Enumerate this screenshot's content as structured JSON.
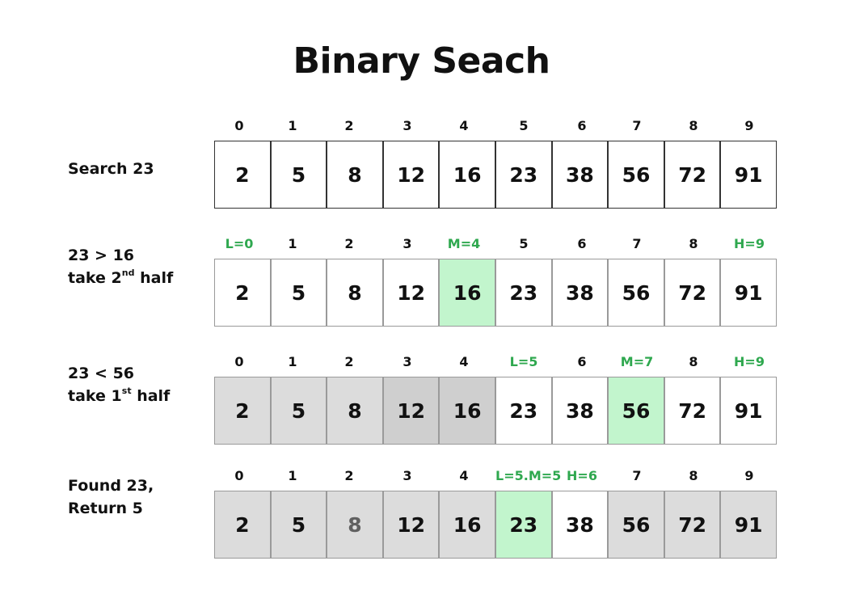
{
  "title": "Binary Seach",
  "colors": {
    "marker": "#2fa84f",
    "mid_cell": "#c2f5cd",
    "excluded_cell": "#dcdcdc",
    "excluded_cell_dark": "#cfcfcf"
  },
  "steps": [
    {
      "label_lines": [
        [
          "Search 23"
        ]
      ],
      "indices": [
        "0",
        "1",
        "2",
        "3",
        "4",
        "5",
        "6",
        "7",
        "8",
        "9"
      ],
      "marked_indices": [],
      "values": [
        "2",
        "5",
        "8",
        "12",
        "16",
        "23",
        "38",
        "56",
        "72",
        "91"
      ],
      "cell_states": [
        "",
        "",
        "",
        "",
        "",
        "",
        "",
        "",
        "",
        ""
      ]
    },
    {
      "label_lines": [
        [
          "23 > 16"
        ],
        [
          "take 2",
          "nd",
          " half"
        ]
      ],
      "indices": [
        "L=0",
        "1",
        "2",
        "3",
        "M=4",
        "5",
        "6",
        "7",
        "8",
        "H=9"
      ],
      "marked_indices": [
        0,
        4,
        9
      ],
      "values": [
        "2",
        "5",
        "8",
        "12",
        "16",
        "23",
        "38",
        "56",
        "72",
        "91"
      ],
      "cell_states": [
        "",
        "",
        "",
        "",
        "mid",
        "",
        "",
        "",
        "",
        ""
      ]
    },
    {
      "label_lines": [
        [
          "23 < 56"
        ],
        [
          "take 1",
          "st",
          " half"
        ]
      ],
      "indices": [
        "0",
        "1",
        "2",
        "3",
        "4",
        "L=5",
        "6",
        "M=7",
        "8",
        "H=9"
      ],
      "marked_indices": [
        5,
        7,
        9
      ],
      "values": [
        "2",
        "5",
        "8",
        "12",
        "16",
        "23",
        "38",
        "56",
        "72",
        "91"
      ],
      "cell_states": [
        "out",
        "out",
        "out",
        "drop",
        "drop",
        "",
        "",
        "mid",
        "",
        ""
      ]
    },
    {
      "label_lines": [
        [
          "Found 23,"
        ],
        [
          "Return 5"
        ]
      ],
      "indices": [
        "0",
        "1",
        "2",
        "3",
        "4",
        "L=5.M=5",
        "H=6",
        "7",
        "8",
        "9"
      ],
      "marked_indices": [
        5,
        6
      ],
      "values": [
        "2",
        "5",
        "8",
        "12",
        "16",
        "23",
        "38",
        "56",
        "72",
        "91"
      ],
      "cell_states": [
        "out",
        "out",
        "dim",
        "out",
        "out",
        "mid",
        "",
        "out",
        "out",
        "out"
      ]
    }
  ]
}
